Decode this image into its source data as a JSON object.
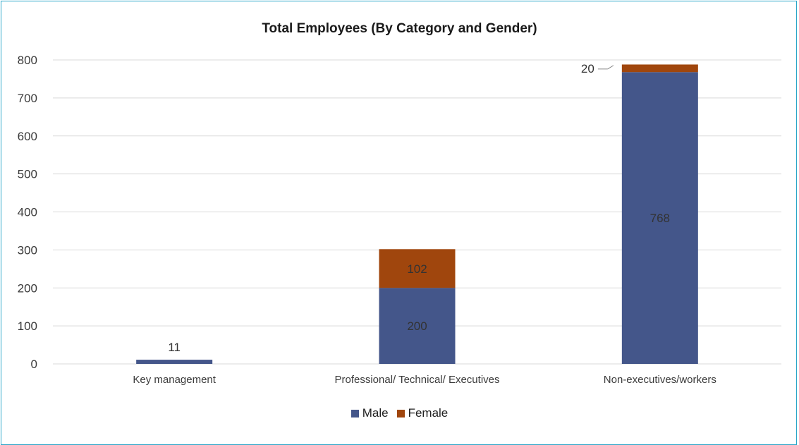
{
  "chart_data": {
    "type": "bar",
    "stacked": true,
    "title": "Total Employees (By Category and Gender)",
    "categories": [
      "Key management",
      "Professional/ Technical/ Executives",
      "Non-executives/workers"
    ],
    "series": [
      {
        "name": "Male",
        "values": [
          11,
          200,
          768
        ],
        "color": "#44568a",
        "data_labels": [
          "11",
          "200",
          "768"
        ]
      },
      {
        "name": "Female",
        "values": [
          0,
          102,
          20
        ],
        "color": "#a0460d",
        "data_labels": [
          "",
          "102",
          "20"
        ]
      }
    ],
    "ylim": [
      0,
      800
    ],
    "yticks": [
      "0",
      "100",
      "200",
      "300",
      "400",
      "500",
      "600",
      "700",
      "800"
    ],
    "grid": true,
    "legend": "bottom"
  }
}
